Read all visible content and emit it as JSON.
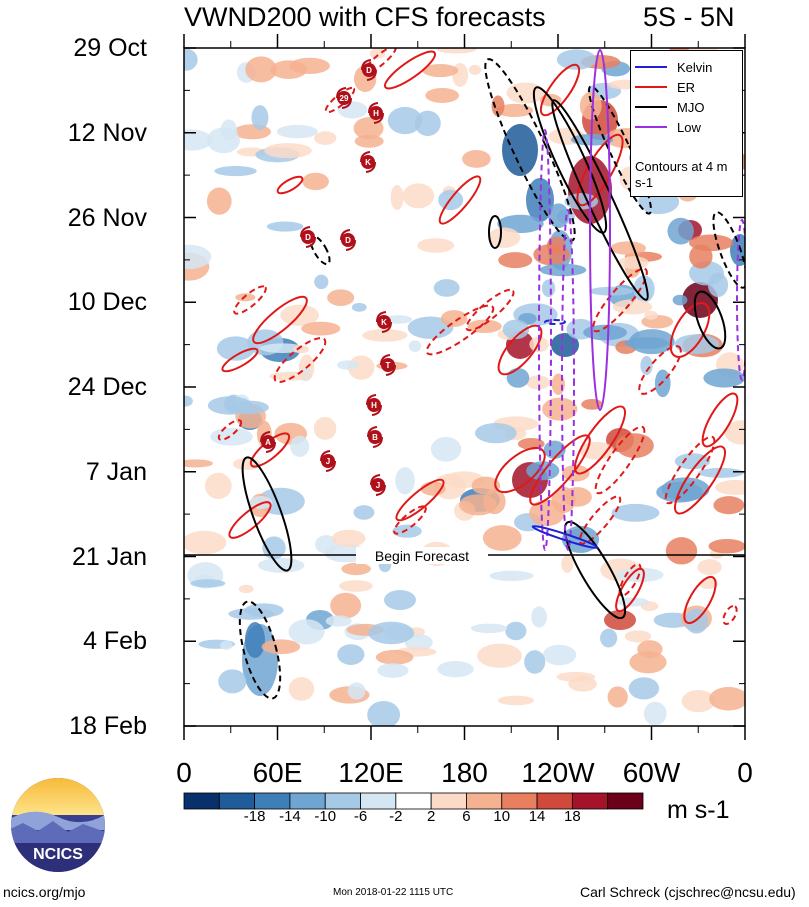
{
  "title": "VWND200 with CFS forecasts",
  "band": "5S - 5N",
  "chart_data": {
    "type": "heatmap",
    "variable": "VWND200",
    "y_ticks": [
      "29 Oct",
      "12 Nov",
      "26 Nov",
      "10 Dec",
      "24 Dec",
      "7 Jan",
      "21 Jan",
      "4 Feb",
      "18 Feb"
    ],
    "x_ticks": [
      "0",
      "60E",
      "120E",
      "180",
      "120W",
      "60W",
      "0"
    ],
    "colorbar": {
      "levels": [
        -18,
        -14,
        -10,
        -6,
        -2,
        2,
        6,
        10,
        14,
        18
      ],
      "labels": [
        "-18",
        "-14",
        "-10",
        "-6",
        "-2",
        "2",
        "6",
        "10",
        "14",
        "18"
      ],
      "colors": [
        "#08306b",
        "#1f5c99",
        "#3f7fb8",
        "#6fa5d2",
        "#a6c9e6",
        "#d5e6f3",
        "#ffffff",
        "#fbdac8",
        "#f5b290",
        "#e88060",
        "#cf4a3b",
        "#a5132a",
        "#6b0018"
      ],
      "units": "m s-1"
    },
    "forecast_label": "Begin Forecast",
    "forecast_start": "21 Jan",
    "legend": {
      "entries": [
        {
          "name": "Kelvin",
          "color": "#1f1fd6"
        },
        {
          "name": "ER",
          "color": "#e01818"
        },
        {
          "name": "MJO",
          "color": "#000000"
        },
        {
          "name": "Low",
          "color": "#9b30e0"
        }
      ],
      "note": "Contours at 4 m s-1",
      "placement": "top-right"
    },
    "storm_markers": [
      "D",
      "29",
      "H",
      "K",
      "D",
      "D",
      "K",
      "T",
      "H",
      "B",
      "J",
      "J",
      "A"
    ]
  },
  "footer": {
    "site": "ncics.org/mjo",
    "timestamp": "Mon 2018-01-22 1115 UTC",
    "author": "Carl Schreck (cjschrec@ncsu.edu)"
  },
  "logo_text": "NCICS"
}
